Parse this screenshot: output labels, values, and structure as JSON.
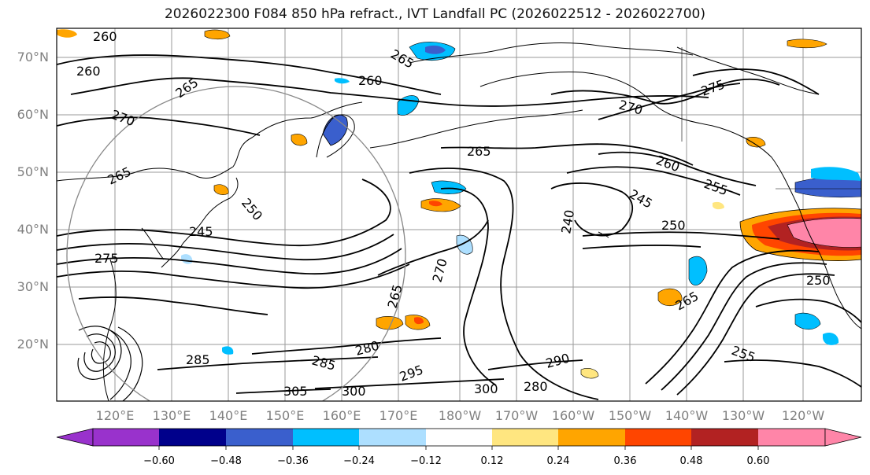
{
  "title": "2026022300 F084 850 hPa refract., IVT Landfall PC (2026022512 - 2026022700)",
  "lat_labels": [
    "70°N",
    "60°N",
    "50°N",
    "40°N",
    "30°N",
    "20°N"
  ],
  "lon_labels": [
    "120°E",
    "130°E",
    "140°E",
    "150°E",
    "160°E",
    "170°E",
    "180°W",
    "170°W",
    "160°W",
    "150°W",
    "140°W",
    "130°W",
    "120°W"
  ],
  "contour_labels": [
    "260",
    "260",
    "265",
    "265",
    "260",
    "270",
    "265",
    "260",
    "255",
    "245",
    "250",
    "240",
    "245",
    "250",
    "275",
    "265",
    "270",
    "265",
    "285",
    "280",
    "285",
    "290",
    "300",
    "280",
    "295",
    "305",
    "300",
    "275",
    "270",
    "250",
    "255",
    "265"
  ],
  "colorbar": {
    "tick_labels": [
      "−0.60",
      "−0.48",
      "−0.36",
      "−0.24",
      "−0.12",
      "0.12",
      "0.24",
      "0.36",
      "0.48",
      "0.60"
    ],
    "colors": [
      "#9932CC",
      "#00008B",
      "#3A5FCD",
      "#00BFFF",
      "#ADDFFF",
      "#FFFFFF",
      "#FFE680",
      "#FFA500",
      "#FF4500",
      "#B22222",
      "#FF85A8"
    ]
  }
}
